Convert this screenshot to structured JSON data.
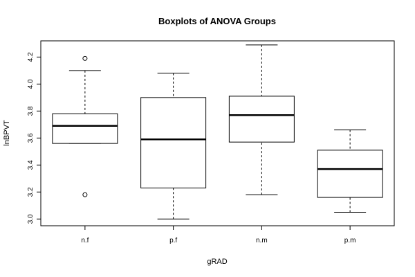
{
  "chart_data": {
    "type": "boxplot",
    "title": "Boxplots of ANOVA Groups",
    "xlabel": "gRAD",
    "ylabel": "lnBPVT",
    "ylim": [
      2.95,
      4.32
    ],
    "yticks": [
      "3.0",
      "3.2",
      "3.4",
      "3.6",
      "3.8",
      "4.0",
      "4.2"
    ],
    "categories": [
      "n.f",
      "p.f",
      "n.m",
      "p.m"
    ],
    "boxes": [
      {
        "category": "n.f",
        "whisker_low": 3.56,
        "q1": 3.56,
        "median": 3.69,
        "q3": 3.78,
        "whisker_high": 4.1,
        "outliers": [
          4.19,
          3.18
        ]
      },
      {
        "category": "p.f",
        "whisker_low": 3.0,
        "q1": 3.23,
        "median": 3.59,
        "q3": 3.9,
        "whisker_high": 4.08,
        "outliers": []
      },
      {
        "category": "n.m",
        "whisker_low": 3.18,
        "q1": 3.57,
        "median": 3.77,
        "q3": 3.91,
        "whisker_high": 4.29,
        "outliers": []
      },
      {
        "category": "p.m",
        "whisker_low": 3.05,
        "q1": 3.16,
        "median": 3.37,
        "q3": 3.51,
        "whisker_high": 3.66,
        "outliers": []
      }
    ]
  }
}
